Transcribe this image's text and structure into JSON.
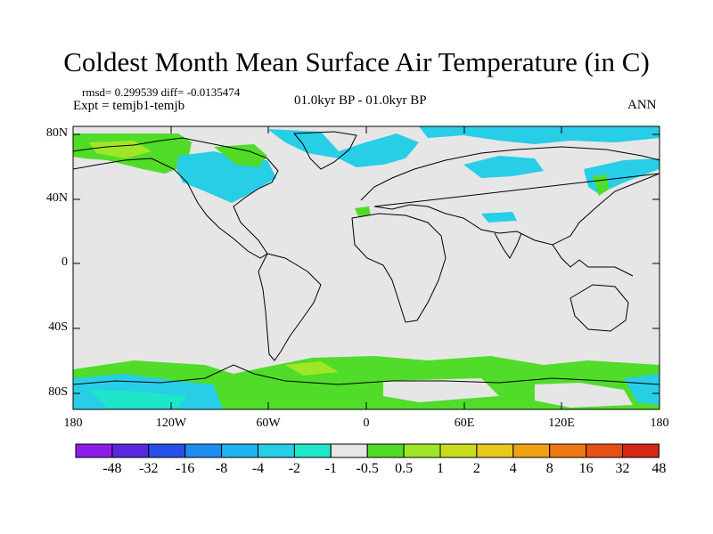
{
  "title": "Coldest Month Mean Surface Air Temperature (in C)",
  "stats": "rmsd= 0.299539 diff= -0.0135474",
  "experiment": "Expt = temjb1-temjb",
  "period": "01.0kyr BP - 01.0kyr BP",
  "season": "ANN",
  "lat_labels": [
    "80N",
    "40N",
    "0",
    "40S",
    "80S"
  ],
  "lon_labels": [
    "180",
    "120W",
    "60W",
    "0",
    "60E",
    "120E",
    "180"
  ],
  "colorbar": {
    "colors": [
      "#8c1ee8",
      "#5a28dc",
      "#2850e6",
      "#1e8cf0",
      "#1eb4f0",
      "#28cde6",
      "#1ee6c8",
      "#e6e6e6",
      "#50dc28",
      "#a0e628",
      "#c8dc1e",
      "#e6c81e",
      "#f0a014",
      "#f07814",
      "#e65014",
      "#d22814"
    ],
    "labels": [
      "-48",
      "-32",
      "-16",
      "-8",
      "-4",
      "-2",
      "-1",
      "-0.5",
      "0.5",
      "1",
      "2",
      "4",
      "8",
      "16",
      "32",
      "48"
    ]
  }
}
